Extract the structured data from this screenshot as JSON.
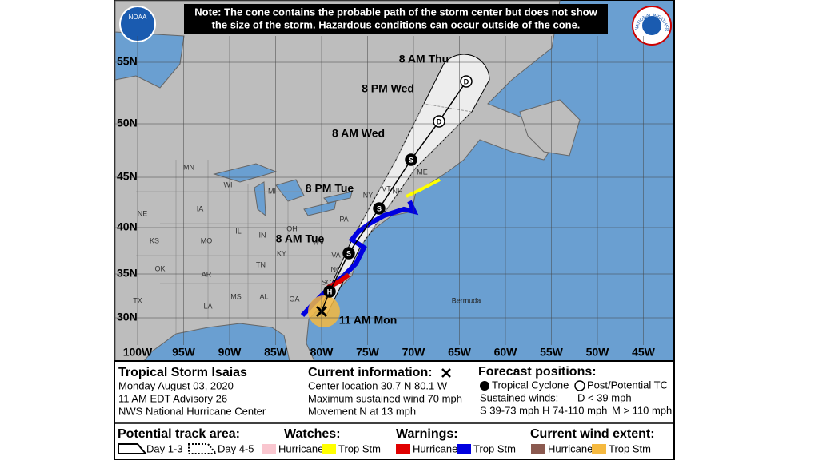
{
  "header": {
    "note": [
      "Note: The cone contains the probable path of the storm center but does not show",
      "the size of the storm. Hazardous conditions can occur outside of the cone."
    ],
    "noaa": "NOAA",
    "nws": "NATIONAL WEATHER SERVICE"
  },
  "map": {
    "lat_labels": [
      "55N",
      "50N",
      "45N",
      "40N",
      "35N",
      "30N"
    ],
    "lon_labels": [
      "100W",
      "95W",
      "90W",
      "85W",
      "80W",
      "75W",
      "70W",
      "65W",
      "60W",
      "55W",
      "50W",
      "45W"
    ],
    "regions": [
      "MN",
      "WI",
      "MI",
      "IA",
      "NE",
      "IL",
      "IN",
      "OH",
      "PA",
      "NY",
      "VT",
      "NH",
      "ME",
      "KS",
      "MO",
      "KY",
      "WV",
      "VA",
      "TN",
      "NC",
      "SC",
      "OK",
      "AR",
      "MS",
      "AL",
      "GA",
      "LA",
      "TX"
    ],
    "places": [
      "Bermuda"
    ],
    "forecast_points": [
      {
        "symbol": "H"
      },
      {
        "symbol": "S",
        "time": "8 AM Tue"
      },
      {
        "symbol": "S",
        "time": "8 PM Tue"
      },
      {
        "symbol": "S",
        "time": "8 AM Wed"
      },
      {
        "symbol": "D",
        "time": "8 PM Wed"
      },
      {
        "symbol": "D",
        "time": "8 AM Thu"
      }
    ],
    "current_time": "11 AM Mon"
  },
  "info": {
    "storm": "Tropical Storm Isaias",
    "date": "Monday August 03, 2020",
    "advisory": "11 AM EDT Advisory 26",
    "center": "NWS National Hurricane Center",
    "current_title": "Current information:",
    "current_lines": [
      "Center location 30.7 N 80.1 W",
      "Maximum sustained wind 70 mph",
      "Movement N at 13 mph"
    ],
    "forecast_title": "Forecast positions:",
    "tropical": "Tropical Cyclone",
    "post": "Post/Potential TC",
    "winds_title": "Sustained winds:",
    "winds": [
      "D < 39 mph",
      "S 39-73 mph",
      "H 74-110 mph",
      "M > 110 mph"
    ]
  },
  "legend": {
    "track_title": "Potential track area:",
    "day13": "Day 1-3",
    "day45": "Day 4-5",
    "watches_title": "Watches:",
    "watch_hurricane": "Hurricane",
    "watch_trop": "Trop Stm",
    "warnings_title": "Warnings:",
    "warn_hurricane": "Hurricane",
    "warn_trop": "Trop Stm",
    "wind_title": "Current wind extent:",
    "wind_hurricane": "Hurricane",
    "wind_trop": "Trop Stm"
  }
}
